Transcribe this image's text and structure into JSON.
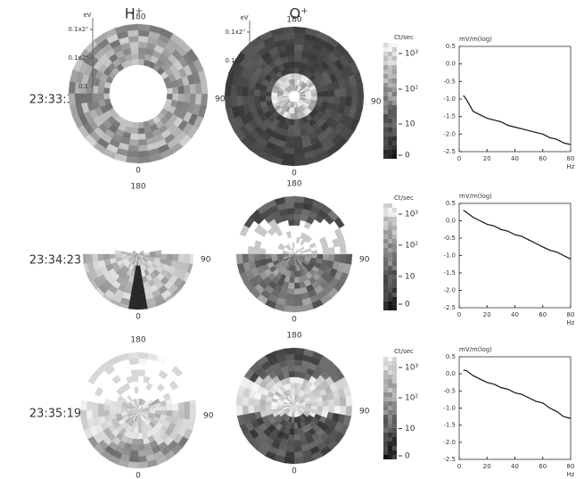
{
  "headers": [
    "H⁺",
    "O⁺"
  ],
  "rows": [
    {
      "time": "23:33:35"
    },
    {
      "time": "23:34:23"
    },
    {
      "time": "23:35:19"
    }
  ],
  "polar_labels": {
    "top": "180",
    "right": "90",
    "bottom": "0"
  },
  "energy_axis": {
    "unit": "eV",
    "labels": [
      "0.1x2⁷",
      "0.1x2⁴",
      "0.1"
    ]
  },
  "colorbar": {
    "unit": "Ct/sec",
    "labels": [
      "10³",
      "10²",
      "10",
      "0"
    ]
  },
  "chart_data": [
    {
      "type": "line",
      "ylabel": "mV/m(log)",
      "xlabel": "Hz",
      "color": "#111111",
      "x": [
        3,
        5,
        10,
        15,
        20,
        25,
        30,
        35,
        40,
        45,
        50,
        55,
        60,
        65,
        70,
        75,
        80
      ],
      "values": [
        -0.9,
        -1.0,
        -1.35,
        -1.45,
        -1.55,
        -1.6,
        -1.65,
        -1.75,
        -1.8,
        -1.85,
        -1.9,
        -1.95,
        -2.0,
        -2.1,
        -2.15,
        -2.25,
        -2.3
      ],
      "xlim": [
        0,
        80
      ],
      "ylim": [
        -2.5,
        0.5
      ],
      "xticks": [
        0,
        20,
        40,
        60,
        80
      ],
      "yticks": [
        0.5,
        {
          "value": 0,
          "label": "0.0"
        },
        -0.5,
        {
          "value": -1,
          "label": "-1.0"
        },
        -1.5,
        {
          "value": -2,
          "label": "-2.0"
        },
        -2.5
      ]
    },
    {
      "type": "line",
      "ylabel": "mV/m(log)",
      "xlabel": "Hz",
      "color": "#111111",
      "x": [
        3,
        5,
        10,
        15,
        20,
        25,
        30,
        35,
        40,
        45,
        50,
        55,
        60,
        65,
        70,
        75,
        80
      ],
      "values": [
        0.3,
        0.25,
        0.1,
        0.0,
        -0.1,
        -0.15,
        -0.25,
        -0.3,
        -0.4,
        -0.45,
        -0.55,
        -0.65,
        -0.75,
        -0.85,
        -0.9,
        -1.0,
        -1.1
      ],
      "xlim": [
        0,
        80
      ],
      "ylim": [
        -2.5,
        0.5
      ],
      "xticks": [
        0,
        20,
        40,
        60,
        80
      ],
      "yticks": [
        0.5,
        {
          "value": 0,
          "label": "0.0"
        },
        -0.5,
        {
          "value": -1,
          "label": "-1.0"
        },
        -1.5,
        {
          "value": -2,
          "label": "-2.0"
        },
        -2.5
      ]
    },
    {
      "type": "line",
      "ylabel": "mV/m(log)",
      "xlabel": "Hz",
      "color": "#111111",
      "x": [
        3,
        5,
        10,
        15,
        20,
        25,
        30,
        35,
        40,
        45,
        50,
        55,
        60,
        65,
        70,
        75,
        80
      ],
      "values": [
        0.1,
        0.1,
        -0.05,
        -0.15,
        -0.25,
        -0.3,
        -0.4,
        -0.45,
        -0.55,
        -0.6,
        -0.7,
        -0.8,
        -0.85,
        -1.0,
        -1.1,
        -1.25,
        -1.3
      ],
      "xlim": [
        0,
        80
      ],
      "ylim": [
        -2.5,
        0.5
      ],
      "xticks": [
        0,
        20,
        40,
        60,
        80
      ],
      "yticks": [
        0.5,
        {
          "value": 0,
          "label": "0.0"
        },
        -0.5,
        {
          "value": -1,
          "label": "-1.0"
        },
        -1.5,
        {
          "value": -2,
          "label": "-2.0"
        },
        -2.5
      ]
    }
  ]
}
